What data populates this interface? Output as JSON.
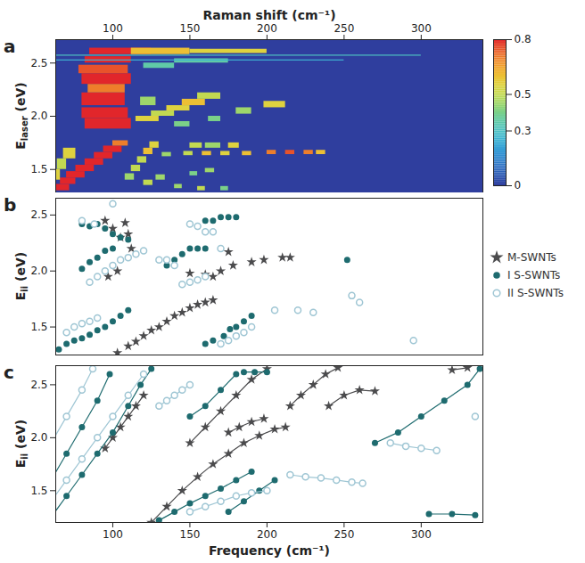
{
  "chart_data": [
    {
      "type": "heatmap",
      "panel_label": "a",
      "xlabel": "Raman shift (cm⁻¹)",
      "ylabel": {
        "text": "E",
        "subscript": "laser",
        "suffix": " (eV)"
      },
      "xlim": [
        63,
        340
      ],
      "xticks": [
        100,
        150,
        200,
        250,
        300
      ],
      "ylim": [
        1.28,
        2.72
      ],
      "yticks": [
        1.5,
        {
          "value": 2,
          "label": "2.0"
        },
        2.5
      ],
      "colorbar": {
        "range": [
          0,
          0.8
        ],
        "ticks": [
          0,
          0.3,
          0.5,
          0.8
        ]
      },
      "cells": [
        [
          62,
          72,
          1.3,
          1.36,
          0.8
        ],
        [
          66,
          76,
          1.36,
          1.42,
          0.8
        ],
        [
          70,
          82,
          1.42,
          1.48,
          0.8
        ],
        [
          76,
          88,
          1.48,
          1.54,
          0.8
        ],
        [
          82,
          94,
          1.54,
          1.6,
          0.8
        ],
        [
          88,
          100,
          1.6,
          1.66,
          0.8
        ],
        [
          94,
          106,
          1.66,
          1.72,
          0.8
        ],
        [
          100,
          110,
          1.72,
          1.77,
          0.7
        ],
        [
          62,
          66,
          1.4,
          1.5,
          0.55
        ],
        [
          64,
          70,
          1.5,
          1.6,
          0.5
        ],
        [
          68,
          76,
          1.6,
          1.7,
          0.55
        ],
        [
          108,
          114,
          1.4,
          1.46,
          0.45
        ],
        [
          112,
          118,
          1.48,
          1.54,
          0.5
        ],
        [
          116,
          122,
          1.56,
          1.62,
          0.5
        ],
        [
          120,
          126,
          1.64,
          1.7,
          0.6
        ],
        [
          124,
          130,
          1.7,
          1.76,
          0.55
        ],
        [
          132,
          138,
          1.62,
          1.66,
          0.45
        ],
        [
          146,
          152,
          1.63,
          1.67,
          0.5
        ],
        [
          158,
          164,
          1.63,
          1.67,
          0.6
        ],
        [
          170,
          176,
          1.63,
          1.67,
          0.55
        ],
        [
          184,
          190,
          1.63,
          1.67,
          0.6
        ],
        [
          200,
          206,
          1.64,
          1.68,
          0.7
        ],
        [
          212,
          218,
          1.64,
          1.68,
          0.75
        ],
        [
          224,
          230,
          1.64,
          1.68,
          0.7
        ],
        [
          232,
          238,
          1.64,
          1.68,
          0.6
        ],
        [
          150,
          158,
          1.7,
          1.75,
          0.5
        ],
        [
          160,
          170,
          1.7,
          1.75,
          0.45
        ],
        [
          175,
          182,
          1.7,
          1.75,
          0.55
        ],
        [
          120,
          126,
          1.35,
          1.4,
          0.5
        ],
        [
          128,
          134,
          1.4,
          1.45,
          0.45
        ],
        [
          150,
          155,
          1.44,
          1.48,
          0.4
        ],
        [
          160,
          166,
          1.47,
          1.51,
          0.45
        ],
        [
          140,
          145,
          1.32,
          1.36,
          0.45
        ],
        [
          155,
          160,
          1.3,
          1.34,
          0.5
        ],
        [
          170,
          175,
          1.3,
          1.34,
          0.4
        ],
        [
          82,
          112,
          1.88,
          1.98,
          0.8
        ],
        [
          80,
          110,
          1.98,
          2.08,
          0.8
        ],
        [
          80,
          108,
          2.1,
          2.22,
          0.8
        ],
        [
          84,
          108,
          2.22,
          2.3,
          0.7
        ],
        [
          115,
          130,
          1.95,
          2.0,
          0.55
        ],
        [
          125,
          140,
          2.0,
          2.05,
          0.5
        ],
        [
          135,
          150,
          2.05,
          2.1,
          0.55
        ],
        [
          145,
          160,
          2.1,
          2.16,
          0.6
        ],
        [
          155,
          170,
          2.16,
          2.22,
          0.5
        ],
        [
          118,
          128,
          2.1,
          2.18,
          0.45
        ],
        [
          180,
          190,
          2.02,
          2.08,
          0.45
        ],
        [
          198,
          212,
          2.08,
          2.14,
          0.55
        ],
        [
          162,
          170,
          1.95,
          2.0,
          0.4
        ],
        [
          140,
          150,
          1.9,
          1.95,
          0.4
        ],
        [
          80,
          112,
          2.3,
          2.4,
          0.8
        ],
        [
          78,
          110,
          2.4,
          2.48,
          0.75
        ],
        [
          82,
          112,
          2.5,
          2.56,
          0.8
        ],
        [
          85,
          125,
          2.58,
          2.64,
          0.8
        ],
        [
          112,
          150,
          2.58,
          2.64,
          0.6
        ],
        [
          150,
          200,
          2.59,
          2.63,
          0.55
        ],
        [
          120,
          140,
          2.45,
          2.5,
          0.35
        ],
        [
          140,
          175,
          2.5,
          2.54,
          0.35
        ],
        [
          62,
          250,
          2.52,
          2.53,
          0.25
        ],
        [
          62,
          300,
          2.565,
          2.575,
          0.3
        ]
      ]
    },
    {
      "type": "scatter",
      "panel_label": "b",
      "ylabel": {
        "text": "E",
        "subscript": "ii",
        "suffix": " (eV)"
      },
      "xlim": [
        63,
        340
      ],
      "ylim": [
        1.25,
        2.65
      ],
      "yticks": [
        1.5,
        {
          "value": 2,
          "label": "2.0"
        },
        2.5
      ],
      "tick_labels": "y",
      "legend": "right",
      "series": [
        {
          "name": "M-SWNTs",
          "color": "#4b4b4d",
          "marker": "star",
          "x": [
            103,
            110,
            115,
            120,
            125,
            130,
            135,
            140,
            145,
            150,
            155,
            160,
            165,
            150,
            160,
            165,
            170,
            178,
            190,
            198,
            210,
            215,
            175,
            97,
            103,
            105,
            110,
            112,
            108,
            95,
            100
          ],
          "values": [
            1.27,
            1.33,
            1.37,
            1.42,
            1.47,
            1.5,
            1.55,
            1.6,
            1.63,
            1.67,
            1.7,
            1.72,
            1.74,
            1.98,
            1.97,
            1.95,
            2.0,
            2.05,
            2.08,
            2.1,
            2.12,
            2.12,
            2.17,
            1.95,
            2.0,
            2.3,
            2.33,
            2.2,
            2.43,
            2.45,
            2.38
          ]
        },
        {
          "name": "I S-SWNTs",
          "color": "#1e6b6f",
          "marker": "circle",
          "x": [
            65,
            70,
            75,
            80,
            85,
            90,
            95,
            100,
            105,
            110,
            80,
            85,
            90,
            95,
            100,
            105,
            110,
            80,
            85,
            90,
            95,
            100,
            160,
            165,
            170,
            175,
            180,
            135,
            140,
            145,
            150,
            155,
            160,
            172,
            176,
            180,
            185,
            190,
            252,
            160,
            165
          ],
          "values": [
            1.3,
            1.35,
            1.38,
            1.4,
            1.43,
            1.47,
            1.5,
            1.55,
            1.6,
            1.65,
            2.42,
            2.4,
            2.42,
            2.38,
            2.33,
            2.3,
            2.28,
            2.02,
            2.08,
            2.12,
            2.18,
            2.2,
            2.45,
            2.45,
            2.48,
            2.48,
            2.48,
            2.05,
            2.1,
            2.15,
            2.2,
            2.2,
            2.2,
            1.42,
            1.48,
            1.5,
            1.55,
            1.6,
            2.1,
            1.35,
            1.38
          ]
        },
        {
          "name": "II S-SWNTs",
          "color": "#9fc6d4",
          "marker": "open circle",
          "x": [
            70,
            75,
            80,
            85,
            90,
            85,
            90,
            95,
            100,
            105,
            110,
            115,
            120,
            80,
            88,
            130,
            135,
            140,
            150,
            155,
            160,
            165,
            170,
            145,
            150,
            155,
            160,
            170,
            175,
            180,
            185,
            190,
            205,
            220,
            230,
            255,
            260,
            295,
            100
          ],
          "values": [
            1.45,
            1.5,
            1.53,
            1.55,
            1.58,
            1.9,
            1.95,
            2.0,
            2.05,
            2.1,
            2.12,
            2.15,
            2.18,
            2.45,
            2.42,
            2.1,
            2.1,
            2.05,
            2.42,
            2.4,
            2.35,
            2.35,
            2.2,
            1.88,
            1.9,
            1.92,
            1.95,
            1.35,
            1.38,
            1.42,
            1.45,
            1.5,
            1.65,
            1.65,
            1.63,
            1.78,
            1.72,
            1.38,
            2.6
          ]
        }
      ]
    },
    {
      "type": "line",
      "panel_label": "c",
      "xlabel": "Frequency (cm⁻¹)",
      "ylabel": {
        "text": "E",
        "subscript": "ii",
        "suffix": " (eV)"
      },
      "xlim": [
        63,
        340
      ],
      "xticks": [
        100,
        150,
        200,
        250,
        300
      ],
      "ylim": [
        1.2,
        2.68
      ],
      "yticks": [
        1.5,
        {
          "value": 2,
          "label": "2.0"
        },
        2.5
      ],
      "series": [
        {
          "name": "M-SWNTs",
          "color": "#4b4b4d",
          "marker": "star",
          "x": [
            95,
            100,
            105,
            110,
            115,
            120,
            null,
            125,
            135,
            145,
            155,
            165,
            175,
            185,
            195,
            205,
            212,
            null,
            150,
            160,
            170,
            180,
            190,
            200,
            null,
            175,
            182,
            190,
            198,
            null,
            215,
            222,
            230,
            238,
            246,
            null,
            240,
            250,
            260,
            270,
            null,
            320,
            330
          ],
          "values": [
            1.9,
            2.0,
            2.1,
            2.2,
            2.3,
            2.4,
            null,
            1.2,
            1.35,
            1.5,
            1.63,
            1.75,
            1.85,
            1.95,
            2.02,
            2.08,
            2.1,
            null,
            1.95,
            2.1,
            2.25,
            2.4,
            2.55,
            2.65,
            null,
            2.05,
            2.1,
            2.15,
            2.18,
            null,
            2.3,
            2.4,
            2.5,
            2.6,
            2.66,
            null,
            2.3,
            2.4,
            2.45,
            2.44,
            null,
            2.64,
            2.66
          ]
        },
        {
          "name": "I S-SWNTs",
          "color": "#1e6b6f",
          "marker": "circle",
          "x": [
            60,
            70,
            80,
            90,
            98,
            null,
            60,
            70,
            80,
            90,
            100,
            110,
            118,
            125,
            null,
            130,
            140,
            150,
            160,
            170,
            180,
            190,
            null,
            150,
            160,
            170,
            180,
            null,
            185,
            192,
            200,
            null,
            175,
            185,
            195,
            205,
            null,
            270,
            285,
            300,
            315,
            330,
            338,
            null,
            305,
            320,
            335
          ],
          "values": [
            1.6,
            1.85,
            2.1,
            2.35,
            2.6,
            null,
            1.25,
            1.45,
            1.65,
            1.85,
            2.05,
            2.3,
            2.5,
            2.65,
            null,
            1.22,
            1.3,
            1.38,
            1.45,
            1.52,
            1.6,
            1.68,
            null,
            2.2,
            2.3,
            2.45,
            2.6,
            null,
            2.62,
            2.62,
            2.62,
            null,
            1.3,
            1.4,
            1.5,
            1.6,
            null,
            1.95,
            2.05,
            2.2,
            2.35,
            2.5,
            2.65,
            null,
            1.28,
            1.28,
            1.27
          ]
        },
        {
          "name": "II S-SWNTs",
          "color": "#9fc6d4",
          "marker": "open circle",
          "x": [
            60,
            70,
            80,
            90,
            100,
            110,
            120,
            null,
            60,
            70,
            80,
            87,
            null,
            130,
            135,
            140,
            145,
            150,
            null,
            150,
            160,
            170,
            180,
            190,
            200,
            null,
            215,
            225,
            235,
            245,
            255,
            262,
            null,
            280,
            290,
            300,
            310,
            null,
            335
          ],
          "values": [
            1.4,
            1.6,
            1.8,
            2.0,
            2.2,
            2.4,
            2.6,
            null,
            1.95,
            2.2,
            2.45,
            2.65,
            null,
            2.3,
            2.35,
            2.4,
            2.45,
            2.5,
            null,
            1.3,
            1.35,
            1.4,
            1.45,
            1.48,
            1.5,
            null,
            1.65,
            1.63,
            1.62,
            1.6,
            1.58,
            1.57,
            null,
            1.95,
            1.92,
            1.9,
            1.88,
            null,
            2.2
          ]
        }
      ]
    }
  ]
}
